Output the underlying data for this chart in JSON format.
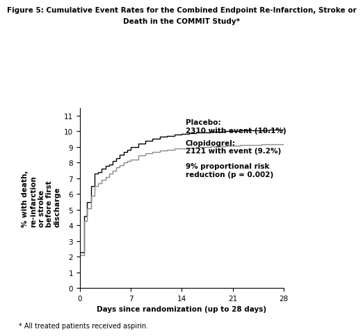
{
  "title_line1": "Figure 5: Cumulative Event Rates for the Combined Endpoint Re-Infarction, Stroke or",
  "title_line2": "Death in the COMMIT Study*",
  "xlabel": "Days since randomization (up to 28 days)",
  "ylabel": "% with death,\nre-infarction\nor stroke\nbefore first\ndischarge",
  "footnote": "* All treated patients received aspirin.",
  "xlim": [
    0,
    28
  ],
  "ylim": [
    0,
    11.5
  ],
  "xticks": [
    0,
    7,
    14,
    21,
    28
  ],
  "yticks": [
    0,
    1,
    2,
    3,
    4,
    5,
    6,
    7,
    8,
    9,
    10,
    11
  ],
  "placebo_color": "#000000",
  "clopidogrel_color": "#888888",
  "placebo_x": [
    0,
    0.3,
    0.6,
    1.0,
    1.5,
    2.0,
    2.5,
    3.0,
    3.5,
    4.0,
    4.5,
    5.0,
    5.5,
    6.0,
    6.5,
    7.0,
    8.0,
    9.0,
    10.0,
    11.0,
    12.0,
    13.0,
    14.0,
    15.0,
    16.0,
    17.0,
    18.0,
    19.0,
    20.0,
    21.0,
    22.0,
    23.0,
    24.0,
    25.0,
    26.0,
    27.0,
    28.0
  ],
  "placebo_y": [
    2.3,
    2.3,
    4.6,
    5.5,
    6.5,
    7.3,
    7.4,
    7.6,
    7.8,
    7.9,
    8.1,
    8.3,
    8.5,
    8.7,
    8.8,
    9.0,
    9.2,
    9.4,
    9.55,
    9.65,
    9.72,
    9.79,
    9.85,
    9.89,
    9.92,
    9.95,
    9.97,
    9.99,
    10.01,
    10.03,
    10.05,
    10.06,
    10.07,
    10.08,
    10.09,
    10.1,
    10.1
  ],
  "clopidogrel_x": [
    0,
    0.3,
    0.6,
    1.0,
    1.5,
    2.0,
    2.5,
    3.0,
    3.5,
    4.0,
    4.5,
    5.0,
    5.5,
    6.0,
    6.5,
    7.0,
    8.0,
    9.0,
    10.0,
    11.0,
    12.0,
    13.0,
    14.0,
    15.0,
    16.0,
    17.0,
    18.0,
    19.0,
    20.0,
    21.0,
    22.0,
    23.0,
    24.0,
    25.0,
    26.0,
    27.0,
    28.0
  ],
  "clopidogrel_y": [
    2.1,
    2.1,
    4.3,
    5.1,
    5.9,
    6.5,
    6.7,
    6.9,
    7.1,
    7.3,
    7.5,
    7.7,
    7.85,
    8.0,
    8.1,
    8.2,
    8.45,
    8.6,
    8.7,
    8.78,
    8.84,
    8.89,
    8.93,
    8.96,
    8.98,
    9.0,
    9.02,
    9.05,
    9.07,
    9.09,
    9.11,
    9.13,
    9.15,
    9.16,
    9.17,
    9.19,
    9.2
  ],
  "annotation_placebo": "Placebo:\n2310 with event (10.1%)",
  "annotation_clopidogrel": "Clopidogrel:\n2121 with event (9.2%)",
  "annotation_reduction": "9% proportional risk\nreduction (p = 0.002)"
}
